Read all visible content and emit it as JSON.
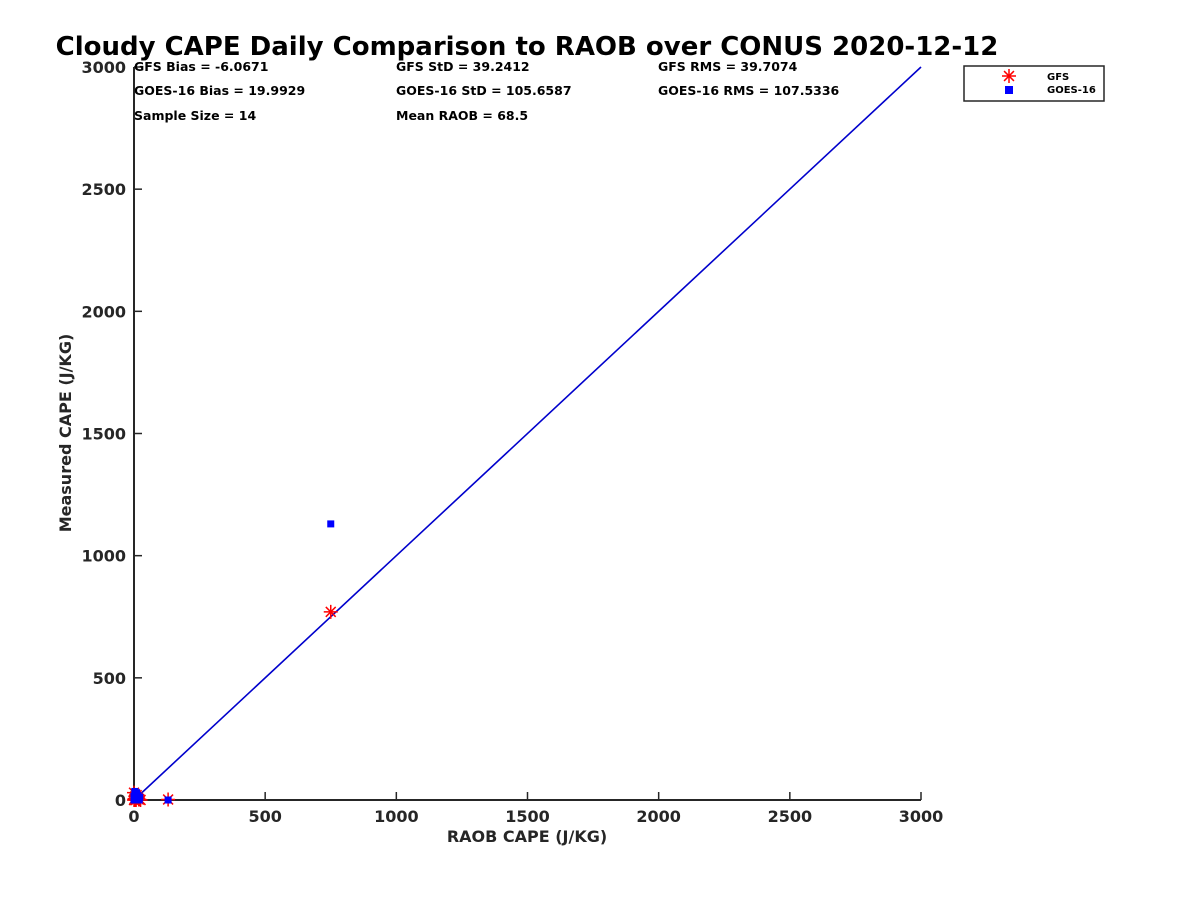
{
  "chart_data": {
    "type": "scatter",
    "title": "Cloudy CAPE Daily Comparison to RAOB over CONUS 2020-12-12",
    "xlabel": "RAOB CAPE (J/KG)",
    "ylabel": "Measured CAPE (J/KG)",
    "xlim": [
      0,
      3000
    ],
    "ylim": [
      0,
      3000
    ],
    "xticks": [
      0,
      500,
      1000,
      1500,
      2000,
      2500,
      3000
    ],
    "yticks": [
      0,
      500,
      1000,
      1500,
      2000,
      2500,
      3000
    ],
    "grid": false,
    "legend_position": "top-right",
    "reference_line": {
      "name": "1:1 line",
      "x": [
        0,
        3000
      ],
      "y": [
        0,
        3000
      ],
      "color": "#0000cc"
    },
    "series": [
      {
        "name": "GFS",
        "marker": "asterisk",
        "color": "#ff0000",
        "points": [
          [
            0,
            30
          ],
          [
            2,
            5
          ],
          [
            5,
            15
          ],
          [
            8,
            0
          ],
          [
            10,
            20
          ],
          [
            15,
            8
          ],
          [
            20,
            3
          ],
          [
            25,
            0
          ],
          [
            3,
            0
          ],
          [
            12,
            10
          ],
          [
            18,
            2
          ],
          [
            0,
            0
          ],
          [
            130,
            2
          ],
          [
            750,
            770
          ]
        ]
      },
      {
        "name": "GOES-16",
        "marker": "square",
        "color": "#0000ff",
        "points": [
          [
            0,
            15
          ],
          [
            3,
            35
          ],
          [
            6,
            10
          ],
          [
            9,
            25
          ],
          [
            12,
            5
          ],
          [
            15,
            18
          ],
          [
            20,
            0
          ],
          [
            0,
            0
          ],
          [
            5,
            0
          ],
          [
            10,
            30
          ],
          [
            22,
            12
          ],
          [
            2,
            8
          ],
          [
            130,
            0
          ],
          [
            750,
            1130
          ]
        ]
      }
    ],
    "stats": {
      "gfs_bias": "GFS Bias = -6.0671",
      "goes_bias": "GOES-16 Bias = 19.9929",
      "sample_size": "Sample Size = 14",
      "gfs_std": "GFS StD = 39.2412",
      "goes_std": "GOES-16 StD = 105.6587",
      "mean_raob": "Mean RAOB = 68.5",
      "gfs_rms": "GFS RMS = 39.7074",
      "goes_rms": "GOES-16 RMS = 107.5336"
    }
  }
}
